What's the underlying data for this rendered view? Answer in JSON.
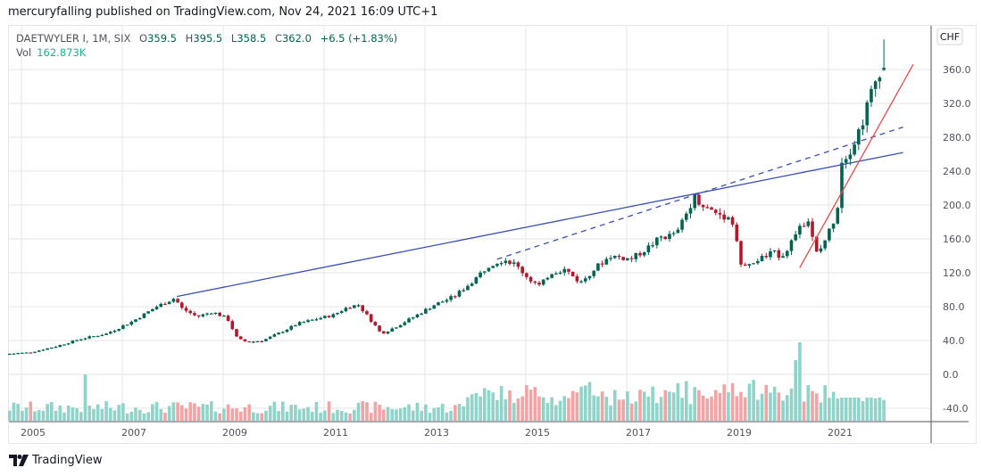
{
  "publisher_line": "mercuryfalling published on TradingView.com, Nov 24, 2021 16:09 UTC+1",
  "legend": {
    "symbol": "DAETWYLER I, 1M, SIX",
    "open_label": "O",
    "open": "359.5",
    "high_label": "H",
    "high": "395.5",
    "low_label": "L",
    "low": "358.5",
    "close_label": "C",
    "close": "362.0",
    "change": "+6.5 (+1.83%)",
    "volume_label": "Vol",
    "volume": "162.873K"
  },
  "currency_badge": "CHF",
  "brand": "TradingView",
  "colors": {
    "up": "#006451",
    "down": "#b2182b",
    "vol_up": "#8fd3c9",
    "vol_down": "#f4a3a5",
    "trendline_blue": "#3a4fb0",
    "trendline_red": "#e84a4a",
    "grid": "#e6e6e6"
  },
  "chart_data": {
    "type": "candlestick",
    "title": "DAETWYLER I, 1M, SIX",
    "interval": "1M",
    "currency": "CHF",
    "y_ticks": [
      "360.0",
      "320.0",
      "280.0",
      "240.0",
      "200.0",
      "160.0",
      "120.0",
      "80.0",
      "40.0",
      "0.0",
      "-40.0"
    ],
    "y_tick_values": [
      360,
      320,
      280,
      240,
      200,
      160,
      120,
      80,
      40,
      0,
      -40
    ],
    "ylim": [
      -50,
      398
    ],
    "x_ticks": [
      "2005",
      "2007",
      "2009",
      "2011",
      "2013",
      "2015",
      "2017",
      "2019",
      "2021"
    ],
    "x_tick_years": [
      2005,
      2007,
      2009,
      2011,
      2013,
      2015,
      2017,
      2019,
      2021
    ],
    "x_range_years": [
      2004.4,
      2022.55
    ],
    "first_month": "2004-07",
    "last_month": "2021-11",
    "close_path": [
      [
        2004.5,
        24
      ],
      [
        2005.0,
        26
      ],
      [
        2005.5,
        33
      ],
      [
        2006.0,
        42
      ],
      [
        2006.5,
        48
      ],
      [
        2007.0,
        62
      ],
      [
        2007.5,
        80
      ],
      [
        2007.85,
        90
      ],
      [
        2008.0,
        78
      ],
      [
        2008.3,
        68
      ],
      [
        2008.6,
        74
      ],
      [
        2008.9,
        66
      ],
      [
        2009.1,
        42
      ],
      [
        2009.3,
        38
      ],
      [
        2009.6,
        40
      ],
      [
        2009.9,
        48
      ],
      [
        2010.3,
        60
      ],
      [
        2010.7,
        66
      ],
      [
        2011.0,
        70
      ],
      [
        2011.3,
        80
      ],
      [
        2011.5,
        82
      ],
      [
        2011.8,
        60
      ],
      [
        2011.95,
        48
      ],
      [
        2012.2,
        55
      ],
      [
        2012.6,
        68
      ],
      [
        2013.0,
        82
      ],
      [
        2013.4,
        92
      ],
      [
        2013.8,
        112
      ],
      [
        2014.1,
        130
      ],
      [
        2014.4,
        136
      ],
      [
        2014.6,
        130
      ],
      [
        2014.9,
        112
      ],
      [
        2015.1,
        104
      ],
      [
        2015.3,
        120
      ],
      [
        2015.6,
        124
      ],
      [
        2015.9,
        108
      ],
      [
        2016.2,
        126
      ],
      [
        2016.5,
        140
      ],
      [
        2016.9,
        136
      ],
      [
        2017.2,
        148
      ],
      [
        2017.5,
        162
      ],
      [
        2017.8,
        165
      ],
      [
        2018.0,
        190
      ],
      [
        2018.15,
        210
      ],
      [
        2018.4,
        196
      ],
      [
        2018.7,
        188
      ],
      [
        2018.9,
        184
      ],
      [
        2019.0,
        158
      ],
      [
        2019.1,
        124
      ],
      [
        2019.4,
        134
      ],
      [
        2019.7,
        144
      ],
      [
        2019.9,
        140
      ],
      [
        2020.2,
        168
      ],
      [
        2020.4,
        182
      ],
      [
        2020.5,
        160
      ],
      [
        2020.6,
        140
      ],
      [
        2020.9,
        178
      ],
      [
        2021.0,
        200
      ],
      [
        2021.05,
        250
      ],
      [
        2021.3,
        270
      ],
      [
        2021.5,
        300
      ],
      [
        2021.65,
        330
      ],
      [
        2021.75,
        346
      ],
      [
        2021.85,
        362
      ]
    ],
    "last_candle": {
      "open": 359.5,
      "high": 395.5,
      "low": 358.5,
      "close": 362.0
    },
    "volume_scale_note": "volume bars overlay bottom of pane, unlabeled",
    "trendlines": [
      {
        "style": "solid",
        "color": "blue",
        "from": {
          "year": 2007.85,
          "price": 92
        },
        "to": {
          "year": 2022.25,
          "price": 262
        }
      },
      {
        "style": "dashed",
        "color": "blue",
        "from": {
          "year": 2014.2,
          "price": 136
        },
        "to": {
          "year": 2022.25,
          "price": 292
        }
      },
      {
        "style": "solid",
        "color": "red",
        "from": {
          "year": 2020.2,
          "price": 126
        },
        "to": {
          "year": 2022.45,
          "price": 366
        }
      }
    ]
  }
}
